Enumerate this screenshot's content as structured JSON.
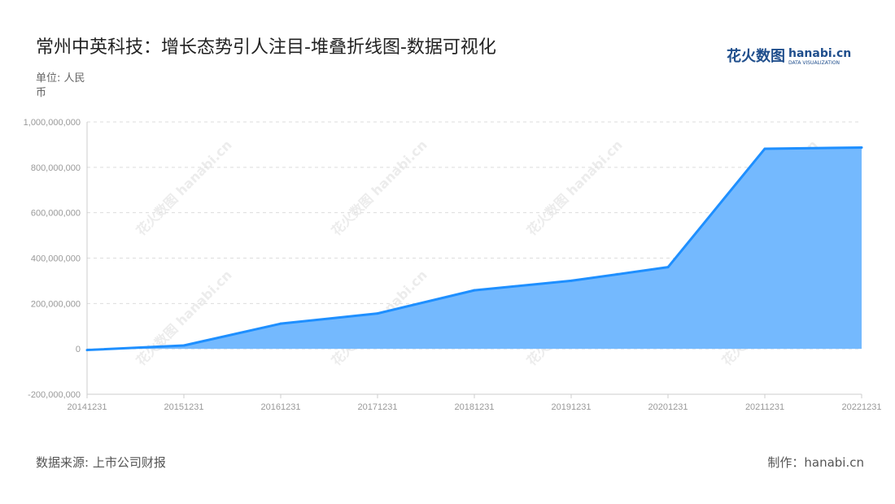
{
  "title": "常州中英科技：增长态势引人注目-堆叠折线图-数据可视化",
  "unit": "单位: 人民币",
  "source": "数据来源: 上市公司财报",
  "credit": "制作：hanabi.cn",
  "logo": {
    "cn": "花火数图",
    "en": "hanabi.cn",
    "tagline": "DATA VISUALIZATION"
  },
  "watermark": "花火数图 hanabi.cn",
  "colors": {
    "line": "#1e8fff",
    "area": "#74b9fe",
    "grid": "#dddddd",
    "axis": "#cccccc",
    "tick_text": "#999999"
  },
  "chart_data": {
    "type": "area",
    "title": "常州中英科技：增长态势引人注目-堆叠折线图-数据可视化",
    "xlabel": "",
    "ylabel": "单位: 人民币",
    "categories": [
      "20141231",
      "20151231",
      "20161231",
      "20171231",
      "20181231",
      "20191231",
      "20201231",
      "20211231",
      "20221231"
    ],
    "values": [
      -5000000,
      15000000,
      111000000,
      156000000,
      258000000,
      300000000,
      360000000,
      882000000,
      887000000
    ],
    "ylim": [
      -200000000,
      1000000000
    ],
    "yticks": [
      -200000000,
      0,
      200000000,
      400000000,
      600000000,
      800000000,
      1000000000
    ],
    "ytick_labels": [
      "-200,000,000",
      "0",
      "200,000,000",
      "400,000,000",
      "600,000,000",
      "800,000,000",
      "1,000,000,000"
    ],
    "grid": true,
    "legend": "none"
  }
}
